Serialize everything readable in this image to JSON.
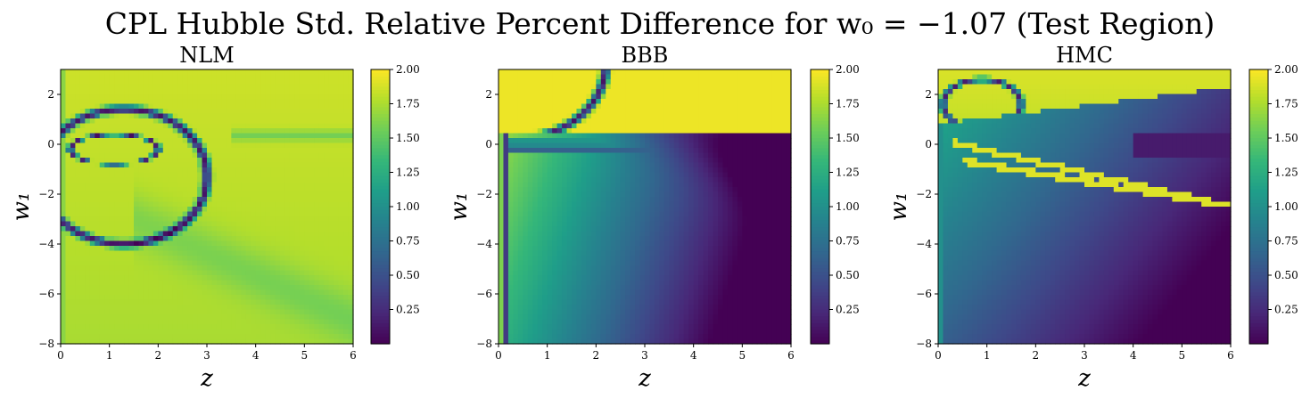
{
  "figure": {
    "title": "CPL Hubble Std. Relative Percent Difference for w₀ = −1.07 (Test Region)"
  },
  "colors": {
    "viridis_stops": [
      "#440154",
      "#482878",
      "#3e4989",
      "#31688e",
      "#26828e",
      "#1f9e89",
      "#35b779",
      "#6ece58",
      "#b5de2b",
      "#fde725"
    ]
  },
  "chart_data": [
    {
      "type": "heatmap",
      "title": "NLM",
      "xlabel": "z",
      "ylabel": "w₁",
      "xlim": [
        0,
        6
      ],
      "ylim": [
        -8,
        3
      ],
      "xticks": [
        "0",
        "1",
        "2",
        "3",
        "4",
        "5",
        "6"
      ],
      "yticks": [
        "−8",
        "−6",
        "−4",
        "−2",
        "0",
        "2"
      ],
      "colorbar": {
        "range": [
          0,
          2.0
        ],
        "ticks": [
          "0.25",
          "0.50",
          "0.75",
          "1.00",
          "1.25",
          "1.50",
          "1.75",
          "2.00"
        ]
      },
      "description_values": {
        "dominant_value": 1.8,
        "min_value_region": "curved band near z 0.3-3.4, w1 -4 to 1"
      }
    },
    {
      "type": "heatmap",
      "title": "BBB",
      "xlabel": "z",
      "ylabel": "w₁",
      "xlim": [
        0,
        6
      ],
      "ylim": [
        -8,
        3
      ],
      "xticks": [
        "0",
        "1",
        "2",
        "3",
        "4",
        "5",
        "6"
      ],
      "yticks": [
        "−8",
        "−6",
        "−4",
        "−2",
        "0",
        "2"
      ],
      "colorbar": {
        "range": [
          0,
          2.0
        ],
        "ticks": [
          "0.25",
          "0.50",
          "0.75",
          "1.00",
          "1.25",
          "1.50",
          "1.75",
          "2.00"
        ]
      },
      "description_values": {
        "upper_region_value": 2.0,
        "lower_right_min": 0.1
      }
    },
    {
      "type": "heatmap",
      "title": "HMC",
      "xlabel": "z",
      "ylabel": "w₁",
      "xlim": [
        0,
        6
      ],
      "ylim": [
        -8,
        3
      ],
      "xticks": [
        "0",
        "1",
        "2",
        "3",
        "4",
        "5",
        "6"
      ],
      "yticks": [
        "−8",
        "−6",
        "−4",
        "−2",
        "0",
        "2"
      ],
      "colorbar": {
        "range": [
          0,
          2.0
        ],
        "ticks": [
          "0.25",
          "0.50",
          "0.75",
          "1.00",
          "1.25",
          "1.50",
          "1.75",
          "2.00"
        ]
      },
      "description_values": {
        "upper_region_value": 2.0,
        "lower_right_min": 0.2
      }
    }
  ]
}
